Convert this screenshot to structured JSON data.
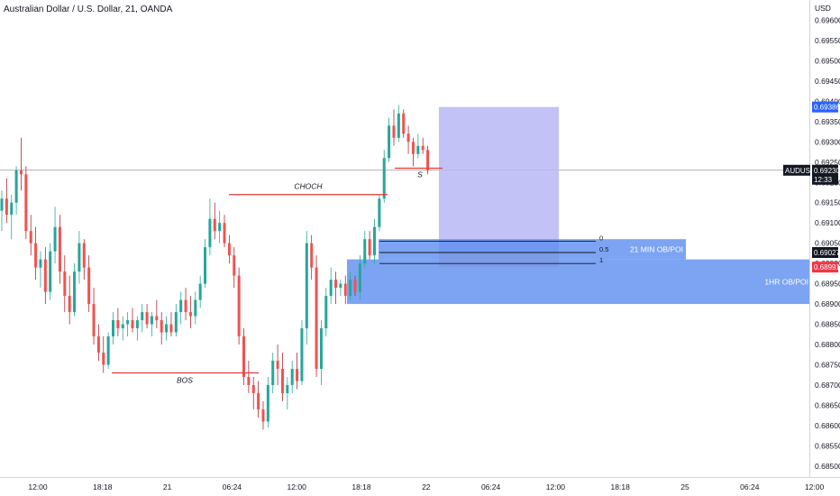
{
  "header": {
    "title": "Australian Dollar / U.S. Dollar, 21, OANDA"
  },
  "chart_data": {
    "type": "candlestick",
    "currency_label": "USD",
    "ylim": [
      0.68473,
      0.6965
    ],
    "y_ticks": [
      "0.69600",
      "0.69550",
      "0.69500",
      "0.69450",
      "0.69400",
      "0.69350",
      "0.69300",
      "0.69250",
      "0.69200",
      "0.69150",
      "0.69100",
      "0.69050",
      "0.69000",
      "0.68950",
      "0.68900",
      "0.68850",
      "0.68800",
      "0.68750",
      "0.68700",
      "0.68650",
      "0.68600",
      "0.68550",
      "0.68500"
    ],
    "x_ticks": [
      "12:00",
      "18:18",
      "21",
      "06:24",
      "12:00",
      "18:18",
      "22",
      "06:24",
      "12:00",
      "18:18",
      "25",
      "06:24",
      "12:00"
    ],
    "price_tags": [
      {
        "id": "target",
        "label": "0.69386",
        "value": 0.69386,
        "color": "#2962ff"
      },
      {
        "id": "symbol",
        "label": "AUDUSD",
        "value": 0.6923,
        "color": "#131722"
      },
      {
        "id": "last",
        "label": "0.69230",
        "sub": "12:33",
        "value": 0.6923,
        "color": "#131722"
      },
      {
        "id": "fib-level",
        "label": "0.69027",
        "value": 0.69027,
        "color": "#131722"
      },
      {
        "id": "stop",
        "label": "0.68991",
        "value": 0.68991,
        "color": "#f23645"
      }
    ],
    "annotations": {
      "choch": "CHOCH",
      "bos": "BOS",
      "s_mark": "S",
      "fib_levels": [
        "0",
        "0.5",
        "1"
      ],
      "zone_21min": "21 MIN OB/POI",
      "zone_1hr": "1HR OB/POI"
    },
    "colors": {
      "up": "#22ab94",
      "down": "#b22833",
      "bull_body": "#26a69a",
      "bear_body": "#ef5350",
      "position_target": "#b7b7f5",
      "position_stop": "#f7c5c8",
      "zone": "#5b8def"
    },
    "candles": [
      {
        "o": 0.6913,
        "h": 0.6918,
        "l": 0.6908,
        "c": 0.6916
      },
      {
        "o": 0.6916,
        "h": 0.6921,
        "l": 0.691,
        "c": 0.6912
      },
      {
        "o": 0.6912,
        "h": 0.6917,
        "l": 0.6906,
        "c": 0.6915
      },
      {
        "o": 0.6915,
        "h": 0.6924,
        "l": 0.6912,
        "c": 0.6923
      },
      {
        "o": 0.6923,
        "h": 0.6931,
        "l": 0.6918,
        "c": 0.6922
      },
      {
        "o": 0.6922,
        "h": 0.6924,
        "l": 0.6906,
        "c": 0.6908
      },
      {
        "o": 0.6908,
        "h": 0.6912,
        "l": 0.6902,
        "c": 0.6905
      },
      {
        "o": 0.6905,
        "h": 0.6909,
        "l": 0.6896,
        "c": 0.6899
      },
      {
        "o": 0.6899,
        "h": 0.6903,
        "l": 0.6894,
        "c": 0.6901
      },
      {
        "o": 0.6901,
        "h": 0.6904,
        "l": 0.689,
        "c": 0.6893
      },
      {
        "o": 0.6893,
        "h": 0.6905,
        "l": 0.6891,
        "c": 0.6903
      },
      {
        "o": 0.6903,
        "h": 0.6914,
        "l": 0.69,
        "c": 0.6909
      },
      {
        "o": 0.6909,
        "h": 0.6912,
        "l": 0.6895,
        "c": 0.6898
      },
      {
        "o": 0.6898,
        "h": 0.6902,
        "l": 0.6888,
        "c": 0.6892
      },
      {
        "o": 0.6892,
        "h": 0.6897,
        "l": 0.6885,
        "c": 0.6888
      },
      {
        "o": 0.6888,
        "h": 0.69,
        "l": 0.6887,
        "c": 0.6898
      },
      {
        "o": 0.6898,
        "h": 0.6908,
        "l": 0.6895,
        "c": 0.6905
      },
      {
        "o": 0.6905,
        "h": 0.6906,
        "l": 0.6896,
        "c": 0.6899
      },
      {
        "o": 0.6899,
        "h": 0.6902,
        "l": 0.6888,
        "c": 0.689
      },
      {
        "o": 0.689,
        "h": 0.6894,
        "l": 0.688,
        "c": 0.6882
      },
      {
        "o": 0.6882,
        "h": 0.6885,
        "l": 0.6876,
        "c": 0.6878
      },
      {
        "o": 0.6878,
        "h": 0.6882,
        "l": 0.6873,
        "c": 0.6875
      },
      {
        "o": 0.6875,
        "h": 0.6883,
        "l": 0.6874,
        "c": 0.6882
      },
      {
        "o": 0.6882,
        "h": 0.6888,
        "l": 0.688,
        "c": 0.6886
      },
      {
        "o": 0.6886,
        "h": 0.6889,
        "l": 0.6882,
        "c": 0.6884
      },
      {
        "o": 0.6884,
        "h": 0.6887,
        "l": 0.6881,
        "c": 0.6885
      },
      {
        "o": 0.6885,
        "h": 0.6888,
        "l": 0.6882,
        "c": 0.6886
      },
      {
        "o": 0.6886,
        "h": 0.6889,
        "l": 0.6883,
        "c": 0.6884
      },
      {
        "o": 0.6884,
        "h": 0.6887,
        "l": 0.6881,
        "c": 0.6886
      },
      {
        "o": 0.6886,
        "h": 0.689,
        "l": 0.6883,
        "c": 0.6888
      },
      {
        "o": 0.6888,
        "h": 0.689,
        "l": 0.6884,
        "c": 0.6885
      },
      {
        "o": 0.6885,
        "h": 0.6888,
        "l": 0.6882,
        "c": 0.6887
      },
      {
        "o": 0.6887,
        "h": 0.6891,
        "l": 0.6884,
        "c": 0.6886
      },
      {
        "o": 0.6886,
        "h": 0.6888,
        "l": 0.688,
        "c": 0.6883
      },
      {
        "o": 0.6883,
        "h": 0.6887,
        "l": 0.6881,
        "c": 0.6885
      },
      {
        "o": 0.6885,
        "h": 0.6888,
        "l": 0.6882,
        "c": 0.6883
      },
      {
        "o": 0.6883,
        "h": 0.689,
        "l": 0.6882,
        "c": 0.6888
      },
      {
        "o": 0.6888,
        "h": 0.6893,
        "l": 0.6885,
        "c": 0.6891
      },
      {
        "o": 0.6891,
        "h": 0.6894,
        "l": 0.6886,
        "c": 0.6888
      },
      {
        "o": 0.6888,
        "h": 0.6892,
        "l": 0.6884,
        "c": 0.6887
      },
      {
        "o": 0.6887,
        "h": 0.6893,
        "l": 0.6885,
        "c": 0.6891
      },
      {
        "o": 0.6891,
        "h": 0.6897,
        "l": 0.6889,
        "c": 0.6895
      },
      {
        "o": 0.6895,
        "h": 0.6906,
        "l": 0.6894,
        "c": 0.6904
      },
      {
        "o": 0.6904,
        "h": 0.6916,
        "l": 0.6902,
        "c": 0.6911
      },
      {
        "o": 0.6911,
        "h": 0.6915,
        "l": 0.6906,
        "c": 0.6908
      },
      {
        "o": 0.6908,
        "h": 0.6913,
        "l": 0.6905,
        "c": 0.691
      },
      {
        "o": 0.691,
        "h": 0.6912,
        "l": 0.6904,
        "c": 0.6905
      },
      {
        "o": 0.6905,
        "h": 0.6907,
        "l": 0.69,
        "c": 0.6902
      },
      {
        "o": 0.6902,
        "h": 0.6904,
        "l": 0.6894,
        "c": 0.6897
      },
      {
        "o": 0.6897,
        "h": 0.6899,
        "l": 0.688,
        "c": 0.6882
      },
      {
        "o": 0.6882,
        "h": 0.6884,
        "l": 0.687,
        "c": 0.6872
      },
      {
        "o": 0.6872,
        "h": 0.6876,
        "l": 0.6868,
        "c": 0.687
      },
      {
        "o": 0.687,
        "h": 0.6872,
        "l": 0.6864,
        "c": 0.6868
      },
      {
        "o": 0.6868,
        "h": 0.6871,
        "l": 0.6862,
        "c": 0.6864
      },
      {
        "o": 0.6864,
        "h": 0.6866,
        "l": 0.6859,
        "c": 0.6861
      },
      {
        "o": 0.6861,
        "h": 0.6872,
        "l": 0.68595,
        "c": 0.687
      },
      {
        "o": 0.687,
        "h": 0.6878,
        "l": 0.6868,
        "c": 0.6876
      },
      {
        "o": 0.6876,
        "h": 0.688,
        "l": 0.687,
        "c": 0.6874
      },
      {
        "o": 0.6874,
        "h": 0.6878,
        "l": 0.6866,
        "c": 0.6868
      },
      {
        "o": 0.6868,
        "h": 0.6872,
        "l": 0.6864,
        "c": 0.687
      },
      {
        "o": 0.687,
        "h": 0.6876,
        "l": 0.6868,
        "c": 0.6874
      },
      {
        "o": 0.6874,
        "h": 0.6878,
        "l": 0.6869,
        "c": 0.6871
      },
      {
        "o": 0.6871,
        "h": 0.6886,
        "l": 0.687,
        "c": 0.6884
      },
      {
        "o": 0.6884,
        "h": 0.6908,
        "l": 0.688,
        "c": 0.6905
      },
      {
        "o": 0.6905,
        "h": 0.6907,
        "l": 0.6896,
        "c": 0.6899
      },
      {
        "o": 0.6899,
        "h": 0.6902,
        "l": 0.6872,
        "c": 0.6874
      },
      {
        "o": 0.6874,
        "h": 0.6886,
        "l": 0.687,
        "c": 0.6884
      },
      {
        "o": 0.6884,
        "h": 0.6894,
        "l": 0.6882,
        "c": 0.6892
      },
      {
        "o": 0.6892,
        "h": 0.6899,
        "l": 0.689,
        "c": 0.6896
      },
      {
        "o": 0.6896,
        "h": 0.6898,
        "l": 0.689,
        "c": 0.6894
      },
      {
        "o": 0.6894,
        "h": 0.6896,
        "l": 0.6892,
        "c": 0.6895
      },
      {
        "o": 0.6895,
        "h": 0.6897,
        "l": 0.689,
        "c": 0.6892
      },
      {
        "o": 0.6892,
        "h": 0.6898,
        "l": 0.6891,
        "c": 0.6896
      },
      {
        "o": 0.6896,
        "h": 0.6897,
        "l": 0.6892,
        "c": 0.6893
      },
      {
        "o": 0.6893,
        "h": 0.6902,
        "l": 0.6891,
        "c": 0.69
      },
      {
        "o": 0.69,
        "h": 0.6908,
        "l": 0.6899,
        "c": 0.6906
      },
      {
        "o": 0.6906,
        "h": 0.6908,
        "l": 0.6901,
        "c": 0.6902
      },
      {
        "o": 0.6902,
        "h": 0.6911,
        "l": 0.69,
        "c": 0.6909
      },
      {
        "o": 0.6909,
        "h": 0.6917,
        "l": 0.6908,
        "c": 0.6916
      },
      {
        "o": 0.6916,
        "h": 0.6928,
        "l": 0.6915,
        "c": 0.6926
      },
      {
        "o": 0.6926,
        "h": 0.6936,
        "l": 0.6925,
        "c": 0.6934
      },
      {
        "o": 0.6934,
        "h": 0.6938,
        "l": 0.6929,
        "c": 0.6931
      },
      {
        "o": 0.6931,
        "h": 0.6939,
        "l": 0.693,
        "c": 0.6937
      },
      {
        "o": 0.6937,
        "h": 0.6938,
        "l": 0.6931,
        "c": 0.6932
      },
      {
        "o": 0.6932,
        "h": 0.6934,
        "l": 0.6927,
        "c": 0.693
      },
      {
        "o": 0.693,
        "h": 0.6931,
        "l": 0.6924,
        "c": 0.6927
      },
      {
        "o": 0.6927,
        "h": 0.6932,
        "l": 0.6926,
        "c": 0.6929
      },
      {
        "o": 0.6929,
        "h": 0.6931,
        "l": 0.6927,
        "c": 0.6928
      },
      {
        "o": 0.6928,
        "h": 0.6929,
        "l": 0.6922,
        "c": 0.6923
      }
    ]
  }
}
